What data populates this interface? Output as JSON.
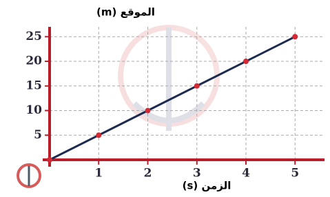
{
  "chart_data": {
    "type": "line",
    "y_label": "الموقع (m)",
    "x_label": "الزمن (s)",
    "x": [
      0,
      1,
      2,
      3,
      4,
      5
    ],
    "series": [
      {
        "color": "#1c2b4f",
        "marker_color": "#d42a35",
        "values": [
          0,
          5,
          10,
          15,
          20,
          25
        ]
      }
    ],
    "xlim": [
      0,
      5.6
    ],
    "xticks": [
      1,
      2,
      3,
      4,
      5
    ],
    "ylim": [
      0,
      27
    ],
    "yticks": [
      5,
      10,
      15,
      20,
      25
    ],
    "grid": true,
    "axis_color": "#b81d2c"
  }
}
